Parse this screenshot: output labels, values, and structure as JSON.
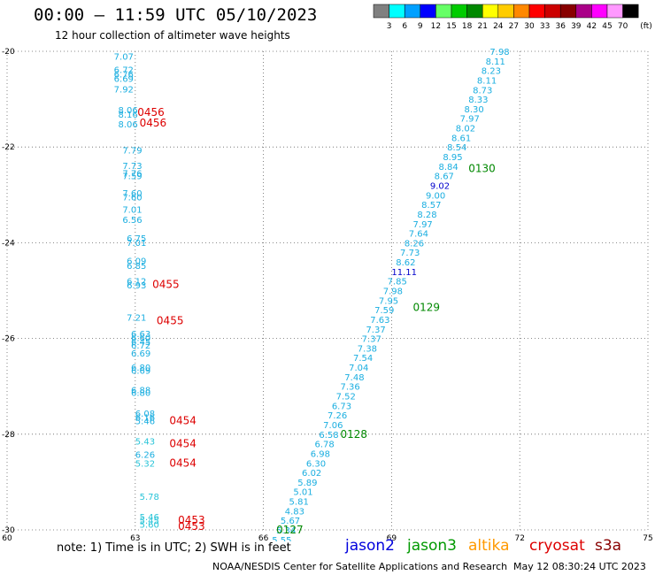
{
  "header": {
    "title": "00:00 — 11:59 UTC 05/10/2023",
    "subtitle": "12 hour collection of altimeter wave heights"
  },
  "legend": {
    "unit": "(ft)",
    "bins": [
      {
        "label": "3",
        "color": "#808080"
      },
      {
        "label": "6",
        "color": "#00ffff"
      },
      {
        "label": "9",
        "color": "#00a0ff"
      },
      {
        "label": "12",
        "color": "#0000ff"
      },
      {
        "label": "15",
        "color": "#66ff66"
      },
      {
        "label": "18",
        "color": "#00cc00"
      },
      {
        "label": "21",
        "color": "#008800"
      },
      {
        "label": "24",
        "color": "#ffff00"
      },
      {
        "label": "27",
        "color": "#ffcc00"
      },
      {
        "label": "30",
        "color": "#ff8800"
      },
      {
        "label": "33",
        "color": "#ff0000"
      },
      {
        "label": "36",
        "color": "#cc0000"
      },
      {
        "label": "39",
        "color": "#880000"
      },
      {
        "label": "42",
        "color": "#aa0088"
      },
      {
        "label": "45",
        "color": "#ff00ff"
      },
      {
        "label": "70",
        "color": "#ff99ff"
      },
      {
        "label": "",
        "color": "#000000"
      }
    ]
  },
  "colors": {
    "cyan": "#1aaee0",
    "darkcyan": "#28c4d8",
    "blue": "#0000cc",
    "red": "#dd0000",
    "green": "#008800",
    "jason2": "#0000dd",
    "jason3": "#009900",
    "altika": "#ff9900",
    "cryosat": "#dd0000",
    "s3a": "#880000"
  },
  "chart_data": {
    "type": "scatter",
    "xlim": [
      60,
      75
    ],
    "ylim": [
      -30,
      -20
    ],
    "xticks": [
      "60",
      "63",
      "66",
      "69",
      "72",
      "75"
    ],
    "yticks": [
      "-20",
      "-22",
      "-24",
      "-26",
      "-28",
      "-30"
    ],
    "left_track": [
      {
        "x": 62.5,
        "y": -20.1,
        "v": "7.07",
        "c": "cyan"
      },
      {
        "x": 62.5,
        "y": -20.38,
        "v": "6.72",
        "c": "cyan"
      },
      {
        "x": 62.5,
        "y": -20.47,
        "v": "6.76",
        "c": "cyan"
      },
      {
        "x": 62.5,
        "y": -20.56,
        "v": "6.69",
        "c": "cyan"
      },
      {
        "x": 62.5,
        "y": -20.79,
        "v": "7.92",
        "c": "cyan"
      },
      {
        "x": 62.6,
        "y": -21.22,
        "v": "8.06",
        "c": "cyan"
      },
      {
        "x": 62.6,
        "y": -21.31,
        "v": "8.16",
        "c": "cyan"
      },
      {
        "x": 62.6,
        "y": -21.52,
        "v": "8.06",
        "c": "cyan"
      },
      {
        "x": 62.7,
        "y": -22.06,
        "v": "7.79",
        "c": "cyan"
      },
      {
        "x": 62.7,
        "y": -22.38,
        "v": "7.73",
        "c": "cyan"
      },
      {
        "x": 62.7,
        "y": -22.54,
        "v": "7.76",
        "c": "cyan"
      },
      {
        "x": 62.7,
        "y": -22.6,
        "v": "7.59",
        "c": "cyan"
      },
      {
        "x": 62.7,
        "y": -22.96,
        "v": "7.60",
        "c": "cyan"
      },
      {
        "x": 62.7,
        "y": -23.04,
        "v": "7.60",
        "c": "cyan"
      },
      {
        "x": 62.7,
        "y": -23.3,
        "v": "7.01",
        "c": "cyan"
      },
      {
        "x": 62.7,
        "y": -23.51,
        "v": "6.56",
        "c": "cyan"
      },
      {
        "x": 62.8,
        "y": -23.9,
        "v": "6.75",
        "c": "cyan"
      },
      {
        "x": 62.8,
        "y": -23.99,
        "v": "7.01",
        "c": "cyan"
      },
      {
        "x": 62.8,
        "y": -24.37,
        "v": "6.09",
        "c": "cyan"
      },
      {
        "x": 62.8,
        "y": -24.47,
        "v": "6.85",
        "c": "cyan"
      },
      {
        "x": 62.8,
        "y": -24.8,
        "v": "6.12",
        "c": "cyan"
      },
      {
        "x": 62.8,
        "y": -24.88,
        "v": "6.93",
        "c": "cyan"
      },
      {
        "x": 62.8,
        "y": -25.55,
        "v": "7.21",
        "c": "cyan"
      },
      {
        "x": 62.9,
        "y": -25.9,
        "v": "6.63",
        "c": "cyan"
      },
      {
        "x": 62.9,
        "y": -25.98,
        "v": "6.60",
        "c": "cyan"
      },
      {
        "x": 62.9,
        "y": -26.06,
        "v": "6.45",
        "c": "cyan"
      },
      {
        "x": 62.9,
        "y": -26.14,
        "v": "6.72",
        "c": "cyan"
      },
      {
        "x": 62.9,
        "y": -26.3,
        "v": "6.69",
        "c": "cyan"
      },
      {
        "x": 62.9,
        "y": -26.6,
        "v": "6.80",
        "c": "cyan"
      },
      {
        "x": 62.9,
        "y": -26.66,
        "v": "6.69",
        "c": "cyan"
      },
      {
        "x": 62.9,
        "y": -27.07,
        "v": "6.88",
        "c": "cyan"
      },
      {
        "x": 62.9,
        "y": -27.13,
        "v": "6.80",
        "c": "cyan"
      },
      {
        "x": 63.0,
        "y": -27.56,
        "v": "6.08",
        "c": "cyan"
      },
      {
        "x": 63.0,
        "y": -27.64,
        "v": "6.16",
        "c": "cyan"
      },
      {
        "x": 63.0,
        "y": -27.72,
        "v": "5.46",
        "c": "cyan"
      },
      {
        "x": 63.0,
        "y": -28.14,
        "v": "5.43",
        "c": "darkcyan"
      },
      {
        "x": 63.0,
        "y": -28.42,
        "v": "6.26",
        "c": "cyan"
      },
      {
        "x": 63.0,
        "y": -28.6,
        "v": "5.32",
        "c": "darkcyan"
      },
      {
        "x": 63.1,
        "y": -29.3,
        "v": "5.78",
        "c": "darkcyan"
      },
      {
        "x": 63.1,
        "y": -29.72,
        "v": "5.46",
        "c": "darkcyan"
      },
      {
        "x": 63.1,
        "y": -29.8,
        "v": "5.45",
        "c": "darkcyan"
      },
      {
        "x": 63.1,
        "y": -29.88,
        "v": "5.60",
        "c": "darkcyan"
      }
    ],
    "right_track": [
      {
        "x": 71.3,
        "y": -20.0,
        "v": "7.98",
        "c": "cyan"
      },
      {
        "x": 71.2,
        "y": -20.2,
        "v": "8.11",
        "c": "cyan"
      },
      {
        "x": 71.1,
        "y": -20.4,
        "v": "8.23",
        "c": "cyan"
      },
      {
        "x": 71.0,
        "y": -20.6,
        "v": "8.11",
        "c": "cyan"
      },
      {
        "x": 70.9,
        "y": -20.8,
        "v": "8.73",
        "c": "cyan"
      },
      {
        "x": 70.8,
        "y": -21.0,
        "v": "8.33",
        "c": "cyan"
      },
      {
        "x": 70.7,
        "y": -21.2,
        "v": "8.30",
        "c": "cyan"
      },
      {
        "x": 70.6,
        "y": -21.4,
        "v": "7.97",
        "c": "cyan"
      },
      {
        "x": 70.5,
        "y": -21.6,
        "v": "8.02",
        "c": "cyan"
      },
      {
        "x": 70.4,
        "y": -21.8,
        "v": "8.61",
        "c": "cyan"
      },
      {
        "x": 70.3,
        "y": -22.0,
        "v": "8.54",
        "c": "cyan"
      },
      {
        "x": 70.2,
        "y": -22.2,
        "v": "8.95",
        "c": "cyan"
      },
      {
        "x": 70.1,
        "y": -22.4,
        "v": "8.84",
        "c": "cyan"
      },
      {
        "x": 70.0,
        "y": -22.6,
        "v": "8.67",
        "c": "cyan"
      },
      {
        "x": 69.9,
        "y": -22.8,
        "v": "9.02",
        "c": "blue"
      },
      {
        "x": 69.8,
        "y": -23.0,
        "v": "9.00",
        "c": "cyan"
      },
      {
        "x": 69.7,
        "y": -23.2,
        "v": "8.57",
        "c": "cyan"
      },
      {
        "x": 69.6,
        "y": -23.4,
        "v": "8.28",
        "c": "cyan"
      },
      {
        "x": 69.5,
        "y": -23.6,
        "v": "7.97",
        "c": "cyan"
      },
      {
        "x": 69.4,
        "y": -23.8,
        "v": "7.64",
        "c": "cyan"
      },
      {
        "x": 69.3,
        "y": -24.0,
        "v": "8.26",
        "c": "cyan"
      },
      {
        "x": 69.2,
        "y": -24.2,
        "v": "7.73",
        "c": "cyan"
      },
      {
        "x": 69.1,
        "y": -24.4,
        "v": "8.62",
        "c": "cyan"
      },
      {
        "x": 69.0,
        "y": -24.6,
        "v": "11.11",
        "c": "blue"
      },
      {
        "x": 68.9,
        "y": -24.8,
        "v": "7.85",
        "c": "cyan"
      },
      {
        "x": 68.8,
        "y": -25.0,
        "v": "7.98",
        "c": "cyan"
      },
      {
        "x": 68.7,
        "y": -25.2,
        "v": "7.95",
        "c": "cyan"
      },
      {
        "x": 68.6,
        "y": -25.4,
        "v": "7.59",
        "c": "cyan"
      },
      {
        "x": 68.5,
        "y": -25.6,
        "v": "7.63",
        "c": "cyan"
      },
      {
        "x": 68.4,
        "y": -25.8,
        "v": "7.37",
        "c": "cyan"
      },
      {
        "x": 68.3,
        "y": -26.0,
        "v": "7.37",
        "c": "cyan"
      },
      {
        "x": 68.2,
        "y": -26.2,
        "v": "7.38",
        "c": "cyan"
      },
      {
        "x": 68.1,
        "y": -26.4,
        "v": "7.54",
        "c": "cyan"
      },
      {
        "x": 68.0,
        "y": -26.6,
        "v": "7.04",
        "c": "cyan"
      },
      {
        "x": 67.9,
        "y": -26.8,
        "v": "7.48",
        "c": "cyan"
      },
      {
        "x": 67.8,
        "y": -27.0,
        "v": "7.36",
        "c": "cyan"
      },
      {
        "x": 67.7,
        "y": -27.2,
        "v": "7.52",
        "c": "cyan"
      },
      {
        "x": 67.6,
        "y": -27.4,
        "v": "6.73",
        "c": "cyan"
      },
      {
        "x": 67.5,
        "y": -27.6,
        "v": "7.26",
        "c": "cyan"
      },
      {
        "x": 67.4,
        "y": -27.8,
        "v": "7.06",
        "c": "cyan"
      },
      {
        "x": 67.3,
        "y": -28.0,
        "v": "6.58",
        "c": "cyan"
      },
      {
        "x": 67.2,
        "y": -28.2,
        "v": "6.78",
        "c": "cyan"
      },
      {
        "x": 67.1,
        "y": -28.4,
        "v": "6.98",
        "c": "cyan"
      },
      {
        "x": 67.0,
        "y": -28.6,
        "v": "6.30",
        "c": "cyan"
      },
      {
        "x": 66.9,
        "y": -28.8,
        "v": "6.02",
        "c": "cyan"
      },
      {
        "x": 66.8,
        "y": -29.0,
        "v": "5.89",
        "c": "cyan"
      },
      {
        "x": 66.7,
        "y": -29.2,
        "v": "5.01",
        "c": "cyan"
      },
      {
        "x": 66.6,
        "y": -29.4,
        "v": "5.81",
        "c": "cyan"
      },
      {
        "x": 66.5,
        "y": -29.6,
        "v": "4.83",
        "c": "cyan"
      },
      {
        "x": 66.4,
        "y": -29.8,
        "v": "5.67",
        "c": "cyan"
      },
      {
        "x": 66.3,
        "y": -30.0,
        "v": "5.34",
        "c": "cyan"
      },
      {
        "x": 66.2,
        "y": -30.2,
        "v": "5.55",
        "c": "cyan"
      }
    ],
    "time_labels": [
      {
        "x": 63.05,
        "y": -21.28,
        "v": "0456",
        "c": "red"
      },
      {
        "x": 63.1,
        "y": -21.5,
        "v": "0456",
        "c": "red"
      },
      {
        "x": 63.4,
        "y": -24.87,
        "v": "0455",
        "c": "red"
      },
      {
        "x": 63.5,
        "y": -25.63,
        "v": "0455",
        "c": "red"
      },
      {
        "x": 63.8,
        "y": -27.72,
        "v": "0454",
        "c": "red"
      },
      {
        "x": 63.8,
        "y": -28.2,
        "v": "0454",
        "c": "red"
      },
      {
        "x": 63.8,
        "y": -28.6,
        "v": "0454",
        "c": "red"
      },
      {
        "x": 64.0,
        "y": -29.8,
        "v": "0453",
        "c": "red"
      },
      {
        "x": 64.0,
        "y": -29.93,
        "v": "0453",
        "c": "red"
      },
      {
        "x": 70.8,
        "y": -22.45,
        "v": "0130",
        "c": "green"
      },
      {
        "x": 69.5,
        "y": -25.35,
        "v": "0129",
        "c": "green"
      },
      {
        "x": 67.8,
        "y": -28.0,
        "v": "0128",
        "c": "green"
      },
      {
        "x": 66.3,
        "y": -30.0,
        "v": "0127",
        "c": "green"
      }
    ]
  },
  "footer": {
    "note": "note: 1) Time is in UTC; 2) SWH is in feet",
    "satellites": [
      "jason2",
      "jason3",
      "altika",
      "cryosat",
      "s3a"
    ],
    "credit": "NOAA/NESDIS Center for Satellite Applications and Research",
    "stamp": "May 12 08:30:24 UTC 2023"
  }
}
